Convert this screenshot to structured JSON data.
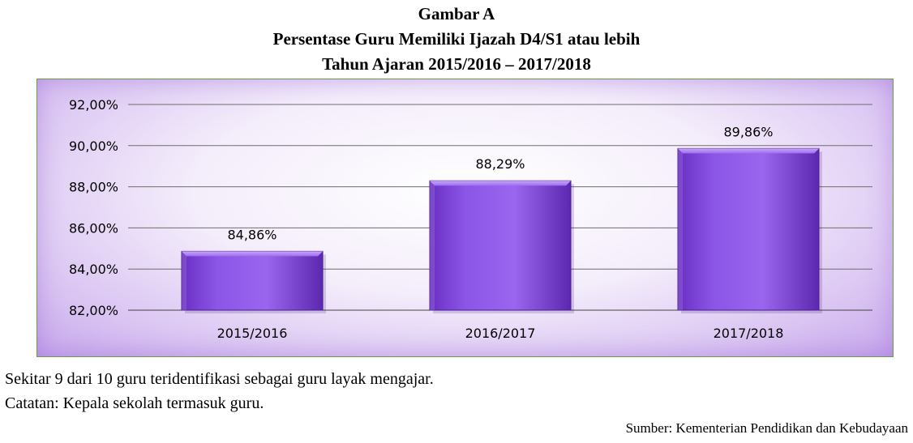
{
  "chart_data": {
    "type": "bar",
    "label": "Gambar A",
    "title": "Persentase Guru Memiliki Ijazah D4/S1 atau lebih",
    "subtitle": "Tahun Ajaran 2015/2016 – 2017/2018",
    "categories": [
      "2015/2016",
      "2016/2017",
      "2017/2018"
    ],
    "values": [
      84.86,
      88.29,
      89.86
    ],
    "data_labels": [
      "84,86%",
      "88,29%",
      "89,86%"
    ],
    "yticks": [
      82,
      84,
      86,
      88,
      90,
      92
    ],
    "ytick_labels": [
      "82,00%",
      "84,00%",
      "86,00%",
      "88,00%",
      "90,00%",
      "92,00%"
    ],
    "ylim": [
      82,
      92
    ],
    "grid": true,
    "bar_color": "#8a4fe0"
  },
  "notes": {
    "line1": "Sekitar 9 dari 10 guru teridentifikasi sebagai guru layak mengajar.",
    "line2": "Catatan: Kepala sekolah termasuk guru.",
    "source": "Sumber: Kementerian Pendidikan dan Kebudayaan"
  }
}
